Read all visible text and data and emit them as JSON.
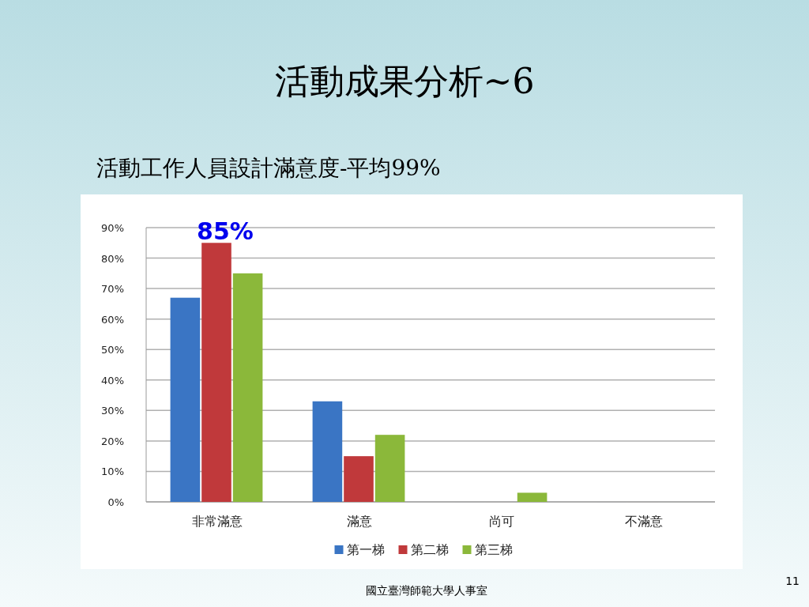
{
  "chart_data": {
    "type": "bar",
    "title": "活動成果分析~6",
    "subtitle": "活動工作人員設計滿意度-平均99%",
    "categories": [
      "非常滿意",
      "滿意",
      "尚可",
      "不滿意"
    ],
    "series": [
      {
        "name": "第一梯",
        "color": "#3a75c4",
        "values": [
          67,
          33,
          0,
          0
        ]
      },
      {
        "name": "第二梯",
        "color": "#c0393b",
        "values": [
          85,
          15,
          0,
          0
        ]
      },
      {
        "name": "第三梯",
        "color": "#8bb83a",
        "values": [
          75,
          22,
          3,
          0
        ]
      }
    ],
    "ylim": [
      0,
      90
    ],
    "yticks": [
      {
        "value": 0,
        "label": "0%"
      },
      {
        "value": 10,
        "label": "10%"
      },
      {
        "value": 20,
        "label": "20%"
      },
      {
        "value": 30,
        "label": "30%"
      },
      {
        "value": 40,
        "label": "40%"
      },
      {
        "value": 50,
        "label": "50%"
      },
      {
        "value": 60,
        "label": "60%"
      },
      {
        "value": 70,
        "label": "70%"
      },
      {
        "value": 80,
        "label": "80%"
      },
      {
        "value": 90,
        "label": "90%"
      }
    ],
    "grid": "y",
    "legend": "bottom",
    "annotations": [
      {
        "text": "85%",
        "x": "非常滿意",
        "y": 85
      },
      "國立臺灣師範大學人事室",
      "11"
    ]
  }
}
